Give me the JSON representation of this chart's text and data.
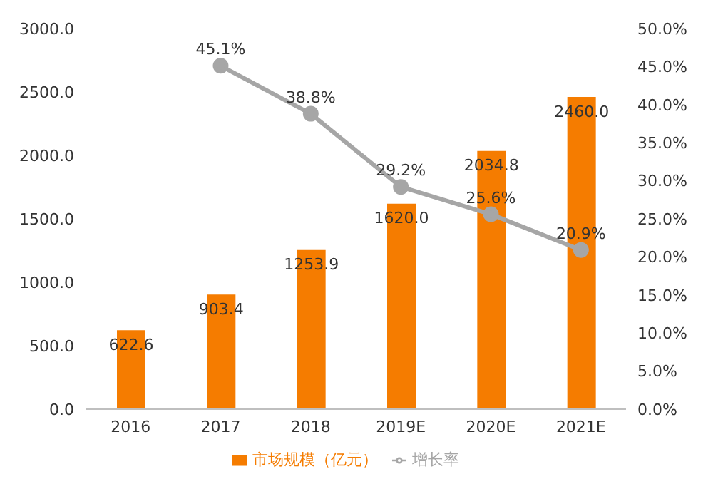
{
  "chart_data": {
    "type": "bar",
    "categories": [
      "2016",
      "2017",
      "2018",
      "2019E",
      "2020E",
      "2021E"
    ],
    "series": [
      {
        "name": "市场规模（亿元）",
        "color": "#f57c00",
        "values": [
          622.6,
          903.4,
          1253.9,
          1620.0,
          2034.8,
          2460.0
        ],
        "value_labels": [
          "622.6",
          "903.4",
          "1253.9",
          "1620.0",
          "2034.8",
          "2460.0"
        ]
      },
      {
        "name": "增长率",
        "type": "line",
        "axis": "y2",
        "color": "#a6a6a6",
        "values": [
          null,
          45.1,
          38.8,
          29.2,
          25.6,
          20.9
        ],
        "value_labels": [
          null,
          "45.1%",
          "38.8%",
          "29.2%",
          "25.6%",
          "20.9%"
        ]
      }
    ],
    "ylim": [
      0,
      3000
    ],
    "yticks": [
      {
        "value": 0,
        "label": "0.0"
      },
      {
        "value": 500,
        "label": "500.0"
      },
      {
        "value": 1000,
        "label": "1000.0"
      },
      {
        "value": 1500,
        "label": "1500.0"
      },
      {
        "value": 2000,
        "label": "2000.0"
      },
      {
        "value": 2500,
        "label": "2500.0"
      },
      {
        "value": 3000,
        "label": "3000.0"
      }
    ],
    "y2lim": [
      0,
      50
    ],
    "y2ticks": [
      {
        "value": 0,
        "label": "0.0%"
      },
      {
        "value": 5,
        "label": "5.0%"
      },
      {
        "value": 10,
        "label": "10.0%"
      },
      {
        "value": 15,
        "label": "15.0%"
      },
      {
        "value": 20,
        "label": "20.0%"
      },
      {
        "value": 25,
        "label": "25.0%"
      },
      {
        "value": 30,
        "label": "30.0%"
      },
      {
        "value": 35,
        "label": "35.0%"
      },
      {
        "value": 40,
        "label": "40.0%"
      },
      {
        "value": 45,
        "label": "45.0%"
      },
      {
        "value": 50,
        "label": "50.0%"
      }
    ],
    "legend": "bottom",
    "marker": "circle",
    "line_style": "solid"
  }
}
